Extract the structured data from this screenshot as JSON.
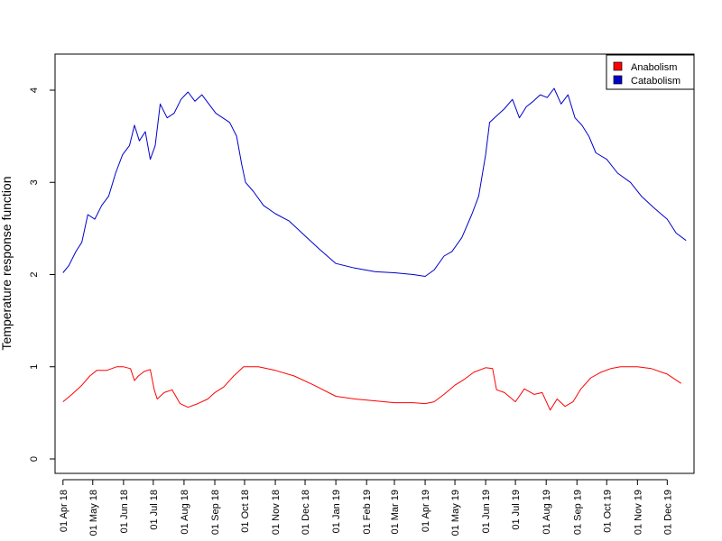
{
  "chart_data": {
    "type": "line",
    "title": "",
    "xlabel": "",
    "ylabel": "Temperature response function",
    "ylim": [
      0,
      4.3
    ],
    "xlim": [
      "2018-03-24",
      "2019-12-28"
    ],
    "grid": false,
    "legend_position": "top-right",
    "y_ticks": [
      "0",
      "1",
      "2",
      "3",
      "4"
    ],
    "x_ticks": [
      {
        "date": "2018-04-01",
        "label": "01 Apr 18"
      },
      {
        "date": "2018-05-01",
        "label": "01 May 18"
      },
      {
        "date": "2018-06-01",
        "label": "01 Jun 18"
      },
      {
        "date": "2018-07-01",
        "label": "01 Jul 18"
      },
      {
        "date": "2018-08-01",
        "label": "01 Aug 18"
      },
      {
        "date": "2018-09-01",
        "label": "01 Sep 18"
      },
      {
        "date": "2018-10-01",
        "label": "01 Oct 18"
      },
      {
        "date": "2018-11-01",
        "label": "01 Nov 18"
      },
      {
        "date": "2018-12-01",
        "label": "01 Dec 18"
      },
      {
        "date": "2019-01-01",
        "label": "01 Jan 19"
      },
      {
        "date": "2019-02-01",
        "label": "01 Feb 19"
      },
      {
        "date": "2019-03-01",
        "label": "01 Mar 19"
      },
      {
        "date": "2019-04-01",
        "label": "01 Apr 19"
      },
      {
        "date": "2019-05-01",
        "label": "01 May 19"
      },
      {
        "date": "2019-06-01",
        "label": "01 Jun 19"
      },
      {
        "date": "2019-07-01",
        "label": "01 Jul 19"
      },
      {
        "date": "2019-08-01",
        "label": "01 Aug 19"
      },
      {
        "date": "2019-09-01",
        "label": "01 Sep 19"
      },
      {
        "date": "2019-10-01",
        "label": "01 Oct 19"
      },
      {
        "date": "2019-11-01",
        "label": "01 Nov 19"
      },
      {
        "date": "2019-12-01",
        "label": "01 Dec 19"
      }
    ],
    "series": [
      {
        "name": "Anabolism",
        "color": "#FF0000",
        "points": [
          [
            "2018-04-01",
            0.62
          ],
          [
            "2018-04-10",
            0.7
          ],
          [
            "2018-04-20",
            0.8
          ],
          [
            "2018-04-28",
            0.9
          ],
          [
            "2018-05-05",
            0.96
          ],
          [
            "2018-05-15",
            0.96
          ],
          [
            "2018-05-25",
            1.0
          ],
          [
            "2018-06-01",
            1.0
          ],
          [
            "2018-06-08",
            0.98
          ],
          [
            "2018-06-12",
            0.85
          ],
          [
            "2018-06-16",
            0.9
          ],
          [
            "2018-06-22",
            0.95
          ],
          [
            "2018-06-28",
            0.97
          ],
          [
            "2018-07-02",
            0.75
          ],
          [
            "2018-07-05",
            0.65
          ],
          [
            "2018-07-12",
            0.72
          ],
          [
            "2018-07-20",
            0.75
          ],
          [
            "2018-07-28",
            0.6
          ],
          [
            "2018-08-05",
            0.56
          ],
          [
            "2018-08-15",
            0.6
          ],
          [
            "2018-08-25",
            0.65
          ],
          [
            "2018-09-01",
            0.72
          ],
          [
            "2018-09-10",
            0.78
          ],
          [
            "2018-09-20",
            0.9
          ],
          [
            "2018-09-30",
            1.0
          ],
          [
            "2018-10-15",
            1.0
          ],
          [
            "2018-11-01",
            0.96
          ],
          [
            "2018-11-20",
            0.9
          ],
          [
            "2018-12-10",
            0.8
          ],
          [
            "2019-01-01",
            0.68
          ],
          [
            "2019-01-20",
            0.65
          ],
          [
            "2019-02-10",
            0.63
          ],
          [
            "2019-03-01",
            0.61
          ],
          [
            "2019-03-20",
            0.61
          ],
          [
            "2019-04-01",
            0.6
          ],
          [
            "2019-04-10",
            0.62
          ],
          [
            "2019-04-20",
            0.7
          ],
          [
            "2019-05-01",
            0.8
          ],
          [
            "2019-05-10",
            0.86
          ],
          [
            "2019-05-20",
            0.94
          ],
          [
            "2019-06-01",
            0.99
          ],
          [
            "2019-06-08",
            0.98
          ],
          [
            "2019-06-12",
            0.75
          ],
          [
            "2019-06-20",
            0.72
          ],
          [
            "2019-07-01",
            0.62
          ],
          [
            "2019-07-10",
            0.76
          ],
          [
            "2019-07-20",
            0.7
          ],
          [
            "2019-07-28",
            0.72
          ],
          [
            "2019-08-05",
            0.53
          ],
          [
            "2019-08-12",
            0.65
          ],
          [
            "2019-08-20",
            0.57
          ],
          [
            "2019-08-28",
            0.62
          ],
          [
            "2019-09-05",
            0.76
          ],
          [
            "2019-09-15",
            0.88
          ],
          [
            "2019-09-25",
            0.94
          ],
          [
            "2019-10-05",
            0.98
          ],
          [
            "2019-10-15",
            1.0
          ],
          [
            "2019-11-01",
            1.0
          ],
          [
            "2019-11-15",
            0.98
          ],
          [
            "2019-12-01",
            0.92
          ],
          [
            "2019-12-15",
            0.82
          ]
        ]
      },
      {
        "name": "Catabolism",
        "color": "#0000CC",
        "points": [
          [
            "2018-04-01",
            2.02
          ],
          [
            "2018-04-07",
            2.1
          ],
          [
            "2018-04-14",
            2.25
          ],
          [
            "2018-04-20",
            2.35
          ],
          [
            "2018-04-26",
            2.65
          ],
          [
            "2018-05-03",
            2.6
          ],
          [
            "2018-05-10",
            2.75
          ],
          [
            "2018-05-17",
            2.85
          ],
          [
            "2018-05-24",
            3.1
          ],
          [
            "2018-05-31",
            3.3
          ],
          [
            "2018-06-07",
            3.4
          ],
          [
            "2018-06-12",
            3.62
          ],
          [
            "2018-06-17",
            3.45
          ],
          [
            "2018-06-23",
            3.55
          ],
          [
            "2018-06-28",
            3.25
          ],
          [
            "2018-07-03",
            3.4
          ],
          [
            "2018-07-08",
            3.85
          ],
          [
            "2018-07-15",
            3.7
          ],
          [
            "2018-07-22",
            3.75
          ],
          [
            "2018-07-29",
            3.9
          ],
          [
            "2018-08-05",
            3.98
          ],
          [
            "2018-08-12",
            3.88
          ],
          [
            "2018-08-19",
            3.95
          ],
          [
            "2018-08-26",
            3.85
          ],
          [
            "2018-09-02",
            3.75
          ],
          [
            "2018-09-09",
            3.7
          ],
          [
            "2018-09-16",
            3.65
          ],
          [
            "2018-09-23",
            3.5
          ],
          [
            "2018-09-28",
            3.2
          ],
          [
            "2018-10-02",
            3.0
          ],
          [
            "2018-10-10",
            2.9
          ],
          [
            "2018-10-20",
            2.75
          ],
          [
            "2018-11-01",
            2.66
          ],
          [
            "2018-11-15",
            2.58
          ],
          [
            "2018-12-01",
            2.42
          ],
          [
            "2018-12-15",
            2.28
          ],
          [
            "2019-01-01",
            2.12
          ],
          [
            "2019-01-20",
            2.07
          ],
          [
            "2019-02-10",
            2.03
          ],
          [
            "2019-03-01",
            2.02
          ],
          [
            "2019-03-20",
            2.0
          ],
          [
            "2019-04-01",
            1.98
          ],
          [
            "2019-04-10",
            2.05
          ],
          [
            "2019-04-20",
            2.2
          ],
          [
            "2019-04-28",
            2.25
          ],
          [
            "2019-05-08",
            2.4
          ],
          [
            "2019-05-18",
            2.65
          ],
          [
            "2019-05-25",
            2.85
          ],
          [
            "2019-06-01",
            3.3
          ],
          [
            "2019-06-05",
            3.65
          ],
          [
            "2019-06-12",
            3.72
          ],
          [
            "2019-06-20",
            3.8
          ],
          [
            "2019-06-28",
            3.9
          ],
          [
            "2019-07-05",
            3.7
          ],
          [
            "2019-07-12",
            3.82
          ],
          [
            "2019-07-19",
            3.88
          ],
          [
            "2019-07-26",
            3.95
          ],
          [
            "2019-08-02",
            3.92
          ],
          [
            "2019-08-09",
            4.02
          ],
          [
            "2019-08-16",
            3.85
          ],
          [
            "2019-08-23",
            3.95
          ],
          [
            "2019-08-30",
            3.7
          ],
          [
            "2019-09-06",
            3.62
          ],
          [
            "2019-09-13",
            3.5
          ],
          [
            "2019-09-20",
            3.32
          ],
          [
            "2019-10-01",
            3.25
          ],
          [
            "2019-10-12",
            3.1
          ],
          [
            "2019-10-25",
            3.0
          ],
          [
            "2019-11-05",
            2.85
          ],
          [
            "2019-11-18",
            2.72
          ],
          [
            "2019-12-01",
            2.6
          ],
          [
            "2019-12-10",
            2.45
          ],
          [
            "2019-12-20",
            2.37
          ]
        ]
      }
    ]
  }
}
